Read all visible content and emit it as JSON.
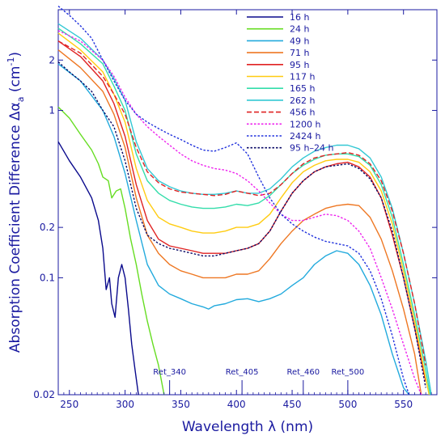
{
  "chart_data": {
    "type": "line",
    "xlabel": "Wavelength  λ  (nm)",
    "ylabel": "Absorption Coefficient Difference  Δα",
    "ylabel_sub": "a",
    "ylabel_unit": "  (cm",
    "ylabel_exp": "-1",
    "ylabel_close": ")",
    "xlim": [
      240,
      580
    ],
    "ylim": [
      0.02,
      4
    ],
    "y_scale": "log",
    "x_ticks": [
      250,
      300,
      350,
      400,
      450,
      500,
      550
    ],
    "y_ticks": [
      {
        "value": 0.02,
        "label": "0.02"
      },
      {
        "value": 0.1,
        "label": "0.1"
      },
      {
        "value": 0.2,
        "label": "0.2"
      },
      {
        "value": 1,
        "label": "1"
      },
      {
        "value": 2,
        "label": "2"
      }
    ],
    "grid": false,
    "legend_position": "top-right",
    "annotations": [
      {
        "text": "Ret_340",
        "x": 340
      },
      {
        "text": "Ret_405",
        "x": 405
      },
      {
        "text": "Ret_460",
        "x": 460
      },
      {
        "text": "Ret_500",
        "x": 500
      }
    ],
    "series": [
      {
        "name": "16 h",
        "color": "#0a0a8c",
        "dash": "solid",
        "x": [
          240,
          250,
          260,
          270,
          276,
          280,
          283,
          286,
          288,
          291,
          294,
          297,
          300,
          303,
          306,
          309,
          312
        ],
        "y": [
          0.65,
          0.5,
          0.4,
          0.3,
          0.22,
          0.15,
          0.085,
          0.1,
          0.07,
          0.058,
          0.1,
          0.12,
          0.1,
          0.065,
          0.04,
          0.028,
          0.02
        ]
      },
      {
        "name": "24 h",
        "color": "#66dd22",
        "dash": "solid",
        "x": [
          240,
          250,
          260,
          270,
          276,
          280,
          285,
          288,
          292,
          296,
          300,
          305,
          310,
          315,
          320,
          325,
          330,
          335
        ],
        "y": [
          1.05,
          0.9,
          0.72,
          0.58,
          0.48,
          0.4,
          0.38,
          0.3,
          0.33,
          0.34,
          0.26,
          0.17,
          0.12,
          0.08,
          0.055,
          0.04,
          0.03,
          0.02
        ]
      },
      {
        "name": "49 h",
        "color": "#22aadd",
        "dash": "solid",
        "x": [
          240,
          260,
          280,
          290,
          300,
          310,
          320,
          330,
          340,
          350,
          360,
          370,
          375,
          380,
          390,
          400,
          410,
          420,
          430,
          440,
          450,
          460,
          470,
          480,
          490,
          500,
          510,
          520,
          530,
          540,
          550,
          555
        ],
        "y": [
          1.9,
          1.5,
          1.0,
          0.7,
          0.42,
          0.22,
          0.12,
          0.09,
          0.08,
          0.075,
          0.07,
          0.067,
          0.065,
          0.068,
          0.07,
          0.074,
          0.075,
          0.072,
          0.075,
          0.08,
          0.09,
          0.1,
          0.12,
          0.135,
          0.145,
          0.14,
          0.12,
          0.09,
          0.06,
          0.035,
          0.022,
          0.02
        ]
      },
      {
        "name": "71 h",
        "color": "#ee7722",
        "dash": "solid",
        "x": [
          240,
          260,
          280,
          290,
          300,
          310,
          320,
          330,
          340,
          350,
          360,
          370,
          380,
          390,
          400,
          410,
          420,
          430,
          440,
          450,
          460,
          470,
          480,
          490,
          500,
          510,
          520,
          530,
          540,
          550,
          560,
          566
        ],
        "y": [
          2.3,
          1.8,
          1.3,
          0.95,
          0.6,
          0.3,
          0.18,
          0.14,
          0.12,
          0.11,
          0.105,
          0.1,
          0.1,
          0.1,
          0.105,
          0.105,
          0.11,
          0.13,
          0.16,
          0.19,
          0.22,
          0.24,
          0.26,
          0.27,
          0.275,
          0.27,
          0.23,
          0.17,
          0.11,
          0.065,
          0.035,
          0.02
        ]
      },
      {
        "name": "95 h",
        "color": "#e02222",
        "dash": "solid",
        "x": [
          240,
          260,
          280,
          290,
          300,
          310,
          320,
          330,
          340,
          350,
          360,
          370,
          380,
          390,
          400,
          410,
          420,
          430,
          440,
          450,
          460,
          470,
          480,
          490,
          500,
          510,
          520,
          530,
          540,
          550,
          560,
          570
        ],
        "y": [
          2.6,
          2.1,
          1.5,
          1.1,
          0.7,
          0.36,
          0.22,
          0.17,
          0.155,
          0.15,
          0.145,
          0.14,
          0.14,
          0.14,
          0.145,
          0.15,
          0.16,
          0.19,
          0.25,
          0.32,
          0.38,
          0.43,
          0.46,
          0.48,
          0.49,
          0.46,
          0.4,
          0.3,
          0.18,
          0.1,
          0.05,
          0.024
        ]
      },
      {
        "name": "117 h",
        "color": "#ffcc11",
        "dash": "solid",
        "x": [
          240,
          260,
          280,
          290,
          300,
          310,
          320,
          330,
          340,
          350,
          360,
          370,
          380,
          390,
          400,
          410,
          420,
          430,
          440,
          450,
          460,
          470,
          480,
          490,
          500,
          510,
          520,
          530,
          540,
          550,
          560,
          570,
          573
        ],
        "y": [
          2.9,
          2.3,
          1.7,
          1.25,
          0.85,
          0.45,
          0.29,
          0.23,
          0.21,
          0.2,
          0.19,
          0.185,
          0.185,
          0.19,
          0.2,
          0.2,
          0.21,
          0.24,
          0.3,
          0.37,
          0.43,
          0.47,
          0.5,
          0.51,
          0.51,
          0.49,
          0.43,
          0.33,
          0.21,
          0.11,
          0.055,
          0.025,
          0.02
        ]
      },
      {
        "name": "165 h",
        "color": "#33ddaa",
        "dash": "solid",
        "x": [
          240,
          260,
          280,
          290,
          300,
          310,
          320,
          330,
          340,
          350,
          360,
          370,
          380,
          390,
          400,
          410,
          420,
          430,
          440,
          450,
          460,
          470,
          480,
          490,
          500,
          510,
          520,
          530,
          540,
          550,
          560,
          570,
          574
        ],
        "y": [
          3.1,
          2.5,
          1.9,
          1.4,
          1.0,
          0.55,
          0.38,
          0.32,
          0.29,
          0.275,
          0.265,
          0.26,
          0.26,
          0.265,
          0.275,
          0.27,
          0.28,
          0.31,
          0.36,
          0.42,
          0.47,
          0.51,
          0.54,
          0.55,
          0.55,
          0.53,
          0.47,
          0.36,
          0.23,
          0.12,
          0.06,
          0.028,
          0.02
        ]
      },
      {
        "name": "262 h",
        "color": "#33c8d4",
        "dash": "solid",
        "x": [
          240,
          260,
          280,
          290,
          300,
          310,
          320,
          330,
          340,
          350,
          360,
          370,
          380,
          390,
          400,
          410,
          420,
          430,
          440,
          450,
          460,
          470,
          480,
          490,
          500,
          510,
          520,
          530,
          540,
          550,
          560,
          570,
          575
        ],
        "y": [
          3.3,
          2.7,
          2.0,
          1.55,
          1.15,
          0.65,
          0.45,
          0.38,
          0.35,
          0.33,
          0.32,
          0.315,
          0.315,
          0.32,
          0.33,
          0.32,
          0.32,
          0.34,
          0.39,
          0.46,
          0.52,
          0.57,
          0.6,
          0.62,
          0.62,
          0.59,
          0.52,
          0.4,
          0.26,
          0.14,
          0.07,
          0.032,
          0.02
        ]
      },
      {
        "name": "456 h",
        "color": "#e02222",
        "dash": "dashed",
        "x": [
          240,
          260,
          280,
          290,
          300,
          310,
          320,
          330,
          340,
          350,
          360,
          370,
          380,
          390,
          400,
          410,
          420,
          430,
          440,
          450,
          460,
          470,
          480,
          490,
          500,
          510,
          520,
          530,
          540,
          550,
          560,
          570
        ],
        "y": [
          2.6,
          2.2,
          1.6,
          1.25,
          0.95,
          0.6,
          0.43,
          0.37,
          0.34,
          0.325,
          0.32,
          0.315,
          0.31,
          0.315,
          0.33,
          0.32,
          0.31,
          0.32,
          0.36,
          0.42,
          0.48,
          0.52,
          0.54,
          0.55,
          0.56,
          0.54,
          0.48,
          0.38,
          0.25,
          0.14,
          0.07,
          0.03
        ]
      },
      {
        "name": "1200 h",
        "color": "#ee22ee",
        "dash": "dotted",
        "x": [
          240,
          260,
          280,
          290,
          300,
          310,
          320,
          330,
          340,
          350,
          360,
          370,
          380,
          390,
          400,
          410,
          420,
          430,
          440,
          450,
          460,
          470,
          480,
          490,
          500,
          510,
          520,
          530,
          540,
          550,
          560,
          566
        ],
        "y": [
          3.0,
          2.6,
          2.0,
          1.6,
          1.2,
          0.95,
          0.8,
          0.7,
          0.62,
          0.55,
          0.5,
          0.47,
          0.45,
          0.44,
          0.42,
          0.38,
          0.33,
          0.28,
          0.24,
          0.22,
          0.22,
          0.23,
          0.24,
          0.235,
          0.22,
          0.19,
          0.15,
          0.1,
          0.065,
          0.04,
          0.025,
          0.02
        ]
      },
      {
        "name": "2424 h",
        "color": "#2233dd",
        "dash": "dotted",
        "x": [
          240,
          250,
          260,
          270,
          280,
          290,
          300,
          310,
          320,
          330,
          340,
          350,
          360,
          370,
          380,
          390,
          400,
          410,
          420,
          430,
          440,
          450,
          460,
          470,
          480,
          490,
          500,
          510,
          520,
          530,
          540,
          550,
          555
        ],
        "y": [
          4.2,
          3.7,
          3.2,
          2.7,
          2.0,
          1.5,
          1.15,
          0.95,
          0.85,
          0.78,
          0.72,
          0.67,
          0.62,
          0.58,
          0.57,
          0.6,
          0.64,
          0.55,
          0.4,
          0.3,
          0.24,
          0.21,
          0.19,
          0.175,
          0.165,
          0.16,
          0.155,
          0.14,
          0.11,
          0.075,
          0.045,
          0.025,
          0.02
        ]
      },
      {
        "name": "95 h–24 h",
        "color": "#0a0a66",
        "dash": "dotted",
        "x": [
          240,
          250,
          260,
          270,
          280,
          290,
          300,
          310,
          320,
          330,
          340,
          350,
          360,
          370,
          380,
          390,
          400,
          410,
          420,
          430,
          440,
          450,
          460,
          470,
          480,
          490,
          500,
          510,
          520,
          530,
          540,
          550,
          560,
          570
        ],
        "y": [
          1.95,
          1.7,
          1.5,
          1.3,
          1.0,
          0.8,
          0.5,
          0.26,
          0.18,
          0.16,
          0.15,
          0.145,
          0.14,
          0.135,
          0.135,
          0.14,
          0.145,
          0.15,
          0.16,
          0.19,
          0.25,
          0.32,
          0.38,
          0.43,
          0.46,
          0.47,
          0.48,
          0.45,
          0.39,
          0.3,
          0.19,
          0.1,
          0.05,
          0.022
        ]
      }
    ]
  }
}
